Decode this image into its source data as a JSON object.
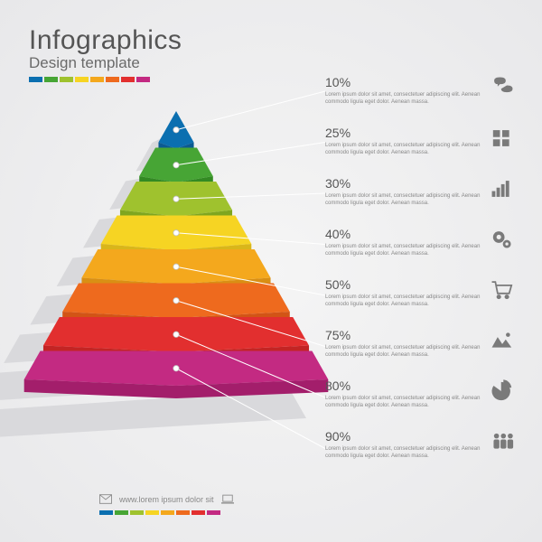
{
  "title": "Infographics",
  "subtitle": "Design template",
  "pyramid": {
    "type": "infographic",
    "layers": [
      {
        "pct": "10%",
        "color_top": "#0b6fb0",
        "color_front": "#0b5a92"
      },
      {
        "pct": "25%",
        "color_top": "#47a535",
        "color_front": "#338a23"
      },
      {
        "pct": "30%",
        "color_top": "#9fc22e",
        "color_front": "#7fa61f"
      },
      {
        "pct": "40%",
        "color_top": "#f6d423",
        "color_front": "#d9b61a"
      },
      {
        "pct": "50%",
        "color_top": "#f4a81d",
        "color_front": "#d98f14"
      },
      {
        "pct": "75%",
        "color_top": "#ee6a1e",
        "color_front": "#d25416"
      },
      {
        "pct": "80%",
        "color_top": "#e22f2f",
        "color_front": "#c32424"
      },
      {
        "pct": "90%",
        "color_top": "#c32a82",
        "color_front": "#a31e6b"
      }
    ],
    "background_shadow": "#d9d9dc",
    "connector_color": "#ffffff",
    "dot_fill": "#ffffff",
    "dot_stroke": "#bfbfbf"
  },
  "lorem": "Lorem ipsum dolor sit amet, consectetuer adipiscing elit. Aenean commodo ligula eget dolor. Aenean massa.",
  "icons": [
    "chat",
    "puzzle",
    "bars",
    "gears",
    "cart",
    "mountains",
    "pie",
    "people"
  ],
  "footer_text": "www.lorem ipsum dolor sit",
  "text_color": "#666666",
  "background": "#eeeef0"
}
